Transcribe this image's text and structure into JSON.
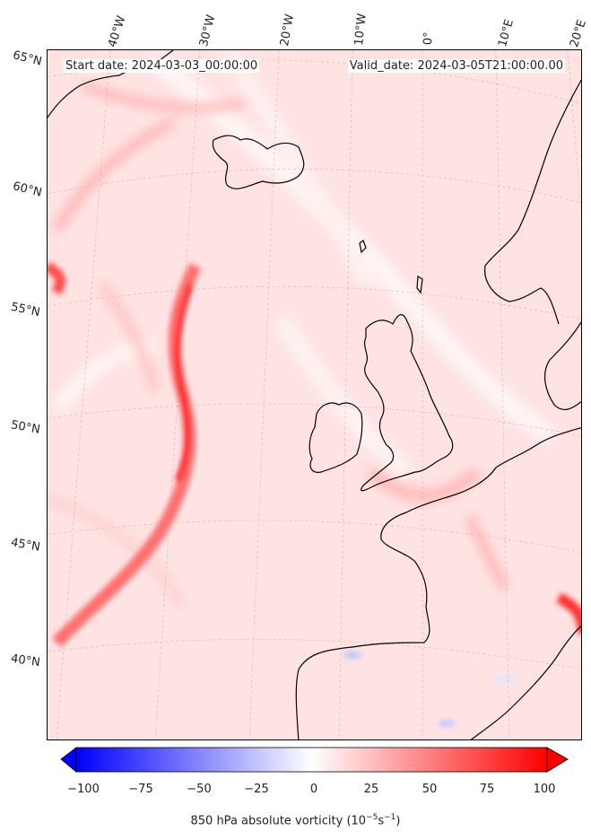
{
  "header": {
    "start_date": "Start date: 2024-03-03_00:00:00",
    "valid_date": "Valid_date: 2024-03-05T21:00:00.00"
  },
  "map": {
    "field": "850 hPa absolute vorticity",
    "lon_labels": [
      "40°W",
      "30°W",
      "20°W",
      "10°W",
      "0°",
      "10°E",
      "20°E"
    ],
    "lat_labels": [
      "65°N",
      "60°N",
      "55°N",
      "50°N",
      "45°N",
      "40°N"
    ],
    "colors": {
      "coast": "#000000",
      "high_positive": "#ff0000",
      "background_low_positive": "#ffe6e6",
      "negative": "#0000ff"
    }
  },
  "colorbar": {
    "ticks": [
      "−100",
      "−75",
      "−50",
      "−25",
      "0",
      "25",
      "50",
      "75",
      "100"
    ],
    "min": -100,
    "max": 100,
    "label_main": "850 hPa absolute vorticity (10",
    "label_sup1": "−5",
    "label_mid": "s",
    "label_sup2": "−1",
    "label_end": ")"
  }
}
